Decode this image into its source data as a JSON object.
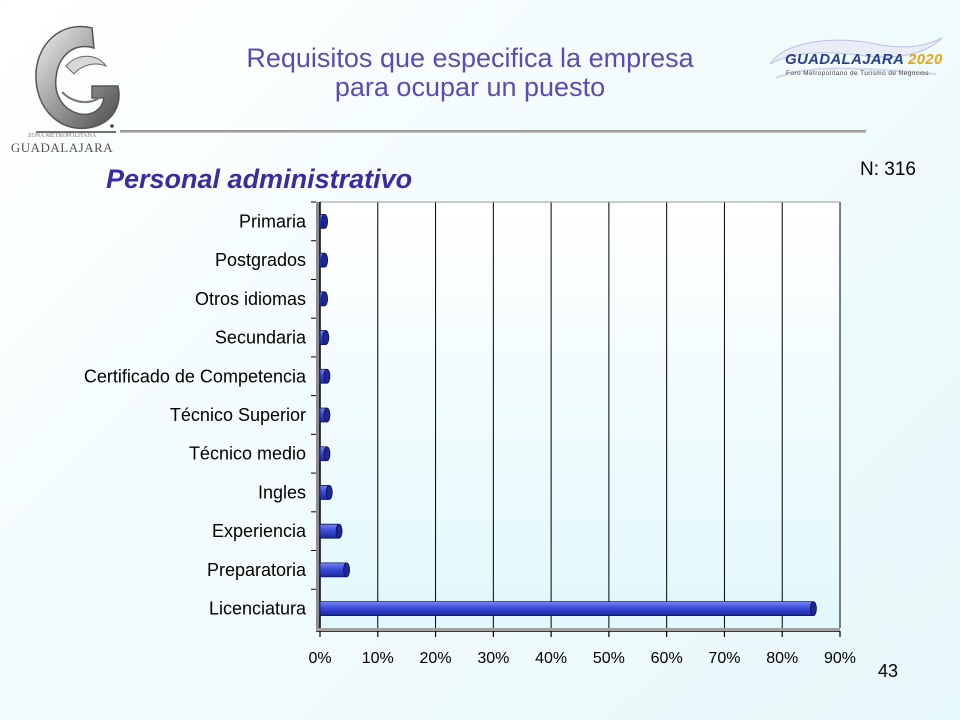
{
  "header": {
    "title_line1": "Requisitos que especifica la empresa",
    "title_line2": "para ocupar un puesto",
    "left_logo_text": "GUADALAJARA",
    "left_logo_subtext": "ZONA METROPOLITANA",
    "right_logo_name": "GUADALAJARA",
    "right_logo_year": "2020",
    "right_logo_tagline": "Foro Metropolitano de Turismo de Negocios"
  },
  "subtitle": "Personal administrativo",
  "sample_size": "N: 316",
  "page_number": "43",
  "colors": {
    "bar": "#3b4bdc",
    "bar_dark": "#1a238f",
    "bar_light": "#6f7ef0",
    "title": "#5a4bb5",
    "subtitle": "#3a2ca0"
  },
  "chart_data": {
    "type": "bar",
    "orientation": "horizontal",
    "categories": [
      "Primaria",
      "Postgrados",
      "Otros idiomas",
      "Secundaria",
      "Certificado de Competencia",
      "Técnico Superior",
      "Técnico medio",
      "Ingles",
      "Experiencia",
      "Preparatoria",
      "Licenciatura"
    ],
    "values": [
      0.8,
      0.8,
      0.8,
      1.0,
      1.2,
      1.2,
      1.2,
      1.6,
      3.3,
      4.6,
      85.4
    ],
    "xlim": [
      0,
      90
    ],
    "ticks": [
      0,
      10,
      20,
      30,
      40,
      50,
      60,
      70,
      80,
      90
    ],
    "tick_labels": [
      "0%",
      "10%",
      "20%",
      "30%",
      "40%",
      "50%",
      "60%",
      "70%",
      "80%",
      "90%"
    ],
    "title": "",
    "xlabel": "",
    "ylabel": "",
    "grid": true
  }
}
